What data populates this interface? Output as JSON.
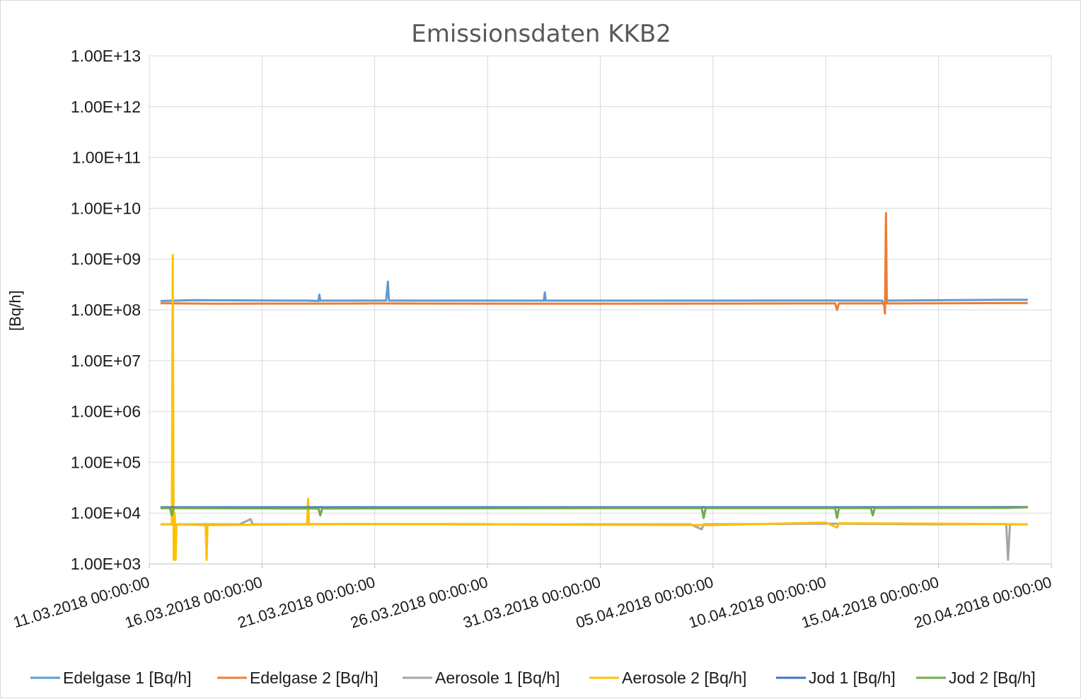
{
  "chart_data": {
    "type": "line",
    "title": "Emissionsdaten KKB2",
    "ylabel": "[Bq/h]",
    "xlabel": "",
    "yscale": "log",
    "ylim": [
      1000,
      10000000000000
    ],
    "xlim": [
      "11.03.2018 00:00:00",
      "20.04.2018 00:00:00"
    ],
    "grid": true,
    "legend_position": "bottom",
    "y_tick_labels": [
      "1.00E+03",
      "1.00E+04",
      "1.00E+05",
      "1.00E+06",
      "1.00E+07",
      "1.00E+08",
      "1.00E+09",
      "1.00E+10",
      "1.00E+11",
      "1.00E+12",
      "1.00E+13"
    ],
    "x_tick_labels": [
      "11.03.2018 00:00:00",
      "16.03.2018 00:00:00",
      "21.03.2018 00:00:00",
      "26.03.2018 00:00:00",
      "31.03.2018 00:00:00",
      "05.04.2018 00:00:00",
      "10.04.2018 00:00:00",
      "15.04.2018 00:00:00",
      "20.04.2018 00:00:00"
    ],
    "series": [
      {
        "name": "Edelgase 1 [Bq/h]",
        "color": "#5B9BD5",
        "points": [
          [
            "11.03.2018 12:00",
            150000000
          ],
          [
            "13.03.2018 00:00",
            155000000
          ],
          [
            "18.03.2018 00:00",
            152000000
          ],
          [
            "18.03.2018 12:00",
            150000000
          ],
          [
            "18.03.2018 13:00",
            200000000
          ],
          [
            "18.03.2018 14:00",
            152000000
          ],
          [
            "21.03.2018 12:00",
            152000000
          ],
          [
            "21.03.2018 14:00",
            360000000
          ],
          [
            "21.03.2018 15:00",
            152000000
          ],
          [
            "28.03.2018 12:00",
            152000000
          ],
          [
            "28.03.2018 13:00",
            220000000
          ],
          [
            "28.03.2018 14:00",
            152000000
          ],
          [
            "05.04.2018 00:00",
            152000000
          ],
          [
            "10.04.2018 00:00",
            153000000
          ],
          [
            "12.04.2018 12:00",
            152000000
          ],
          [
            "12.04.2018 14:00",
            125000000
          ],
          [
            "12.04.2018 16:00",
            152000000
          ],
          [
            "18.04.2018 00:00",
            158000000
          ],
          [
            "18.04.2018 23:00",
            158000000
          ]
        ]
      },
      {
        "name": "Edelgase 2 [Bq/h]",
        "color": "#ED7D31",
        "points": [
          [
            "11.03.2018 12:00",
            135000000
          ],
          [
            "14.03.2018 00:00",
            132000000
          ],
          [
            "18.03.2018 00:00",
            133000000
          ],
          [
            "21.03.2018 00:00",
            134000000
          ],
          [
            "28.03.2018 00:00",
            132000000
          ],
          [
            "05.04.2018 00:00",
            133000000
          ],
          [
            "10.04.2018 00:00",
            134000000
          ],
          [
            "10.04.2018 10:00",
            134000000
          ],
          [
            "10.04.2018 12:00",
            100000000
          ],
          [
            "10.04.2018 14:00",
            134000000
          ],
          [
            "12.04.2018 14:00",
            134000000
          ],
          [
            "12.04.2018 15:00",
            85000000
          ],
          [
            "12.04.2018 16:00",
            8000000000
          ],
          [
            "12.04.2018 17:00",
            134000000
          ],
          [
            "18.04.2018 00:00",
            136000000
          ],
          [
            "18.04.2018 23:00",
            136000000
          ]
        ]
      },
      {
        "name": "Aerosole 1 [Bq/h]",
        "color": "#A5A5A5",
        "points": [
          [
            "11.03.2018 12:00",
            6000
          ],
          [
            "15.03.2018 00:00",
            6000
          ],
          [
            "15.03.2018 12:00",
            7600
          ],
          [
            "15.03.2018 14:00",
            6000
          ],
          [
            "20.03.2018 00:00",
            6100
          ],
          [
            "25.03.2018 00:00",
            6000
          ],
          [
            "04.04.2018 00:00",
            6000
          ],
          [
            "04.04.2018 12:00",
            4800
          ],
          [
            "04.04.2018 14:00",
            6000
          ],
          [
            "10.04.2018 00:00",
            6200
          ],
          [
            "15.04.2018 00:00",
            6000
          ],
          [
            "18.04.2018 00:00",
            6100
          ],
          [
            "18.04.2018 02:00",
            1200
          ],
          [
            "18.04.2018 04:00",
            6000
          ],
          [
            "18.04.2018 23:00",
            6000
          ]
        ]
      },
      {
        "name": "Aerosole 2 [Bq/h]",
        "color": "#FFC000",
        "points": [
          [
            "11.03.2018 12:00",
            6000
          ],
          [
            "12.03.2018 00:00",
            6000
          ],
          [
            "12.03.2018 01:00",
            1200000000
          ],
          [
            "12.03.2018 02:00",
            1200
          ],
          [
            "12.03.2018 03:00",
            10000
          ],
          [
            "12.03.2018 04:00",
            1200
          ],
          [
            "12.03.2018 05:00",
            6000
          ],
          [
            "13.03.2018 12:00",
            5800
          ],
          [
            "13.03.2018 13:00",
            1200
          ],
          [
            "13.03.2018 14:00",
            5800
          ],
          [
            "18.03.2018 00:00",
            6000
          ],
          [
            "18.03.2018 01:00",
            19000
          ],
          [
            "18.03.2018 02:00",
            6000
          ],
          [
            "25.03.2018 00:00",
            6100
          ],
          [
            "30.03.2018 00:00",
            5900
          ],
          [
            "05.04.2018 00:00",
            5800
          ],
          [
            "10.04.2018 00:00",
            6500
          ],
          [
            "10.04.2018 12:00",
            5200
          ],
          [
            "10.04.2018 14:00",
            6300
          ],
          [
            "15.04.2018 00:00",
            6200
          ],
          [
            "18.04.2018 23:00",
            6000
          ]
        ]
      },
      {
        "name": "Jod 1 [Bq/h]",
        "color": "#4472C4",
        "points": [
          [
            "11.03.2018 12:00",
            13000
          ],
          [
            "20.03.2018 00:00",
            13000
          ],
          [
            "01.04.2018 00:00",
            13000
          ],
          [
            "10.04.2018 00:00",
            13000
          ],
          [
            "18.04.2018 23:00",
            13100
          ]
        ]
      },
      {
        "name": "Jod 2 [Bq/h]",
        "color": "#70AD47",
        "points": [
          [
            "11.03.2018 12:00",
            12500
          ],
          [
            "11.03.2018 22:00",
            12500
          ],
          [
            "12.03.2018 00:00",
            9000
          ],
          [
            "12.03.2018 02:00",
            12500
          ],
          [
            "17.03.2018 00:00",
            12300
          ],
          [
            "18.03.2018 12:00",
            12300
          ],
          [
            "18.03.2018 14:00",
            9000
          ],
          [
            "18.03.2018 16:00",
            12300
          ],
          [
            "25.03.2018 00:00",
            12400
          ],
          [
            "31.03.2018 00:00",
            12500
          ],
          [
            "04.04.2018 12:00",
            12500
          ],
          [
            "04.04.2018 14:00",
            8000
          ],
          [
            "04.04.2018 16:00",
            12500
          ],
          [
            "10.04.2018 10:00",
            12500
          ],
          [
            "10.04.2018 12:00",
            8000
          ],
          [
            "10.04.2018 14:00",
            12500
          ],
          [
            "12.04.2018 00:00",
            12500
          ],
          [
            "12.04.2018 02:00",
            9000
          ],
          [
            "12.04.2018 04:00",
            12500
          ],
          [
            "18.04.2018 00:00",
            12600
          ],
          [
            "18.04.2018 23:00",
            13000
          ]
        ]
      }
    ]
  }
}
